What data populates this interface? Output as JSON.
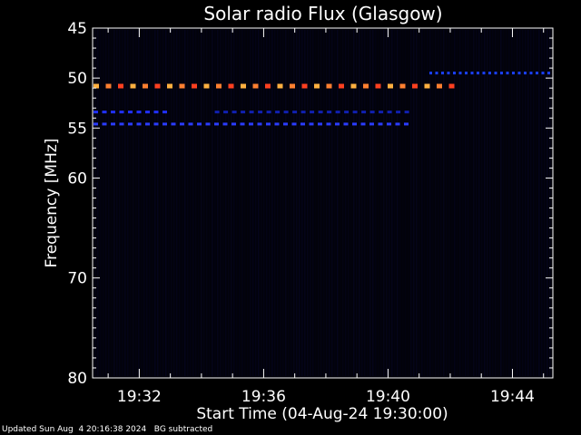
{
  "chart_data": {
    "type": "heatmap",
    "title": "Solar radio Flux (Glasgow)",
    "xlabel": "Start Time (04-Aug-24 19:30:00)",
    "ylabel": "Frequency [MHz]",
    "x_range_minutes": [
      30.5,
      45.3
    ],
    "x_ticks": [
      "19:32",
      "19:36",
      "19:40",
      "19:44"
    ],
    "x_tick_minutes": [
      32,
      36,
      40,
      44
    ],
    "y_range": [
      45,
      80
    ],
    "y_ticks": [
      45,
      50,
      55,
      60,
      70,
      80
    ],
    "background_color": "#000000",
    "bands": [
      {
        "freq_mhz": 50.8,
        "t_start": 30.5,
        "t_end": 42.2,
        "colors": [
          "#ffb040",
          "#ff8030",
          "#ff4020"
        ],
        "intensity": "high"
      },
      {
        "freq_mhz": 53.4,
        "t_start": 30.5,
        "t_end": 32.9,
        "colors": [
          "#2030ff"
        ],
        "intensity": "low"
      },
      {
        "freq_mhz": 53.4,
        "t_start": 34.4,
        "t_end": 40.8,
        "colors": [
          "#1020b0"
        ],
        "intensity": "low"
      },
      {
        "freq_mhz": 54.6,
        "t_start": 30.5,
        "t_end": 40.8,
        "colors": [
          "#2a3cff"
        ],
        "intensity": "low"
      },
      {
        "freq_mhz": 49.5,
        "t_start": 41.3,
        "t_end": 45.3,
        "colors": [
          "#1a40ff"
        ],
        "intensity": "low"
      }
    ]
  },
  "footer": {
    "text": "Updated Sun Aug  4 20:16:38 2024   BG subtracted"
  }
}
